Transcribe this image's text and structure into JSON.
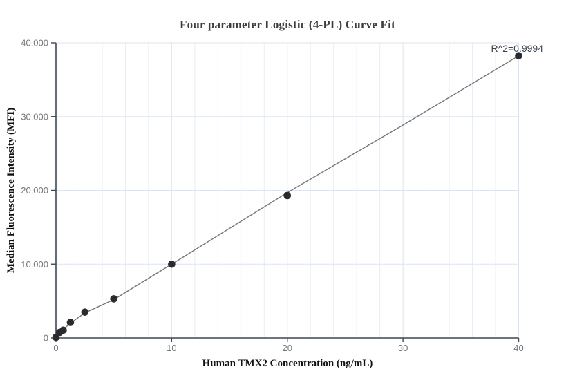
{
  "chart_data": {
    "type": "scatter",
    "title": "Four parameter Logistic (4-PL) Curve Fit",
    "xlabel": "Human TMX2 Concentration (ng/mL)",
    "ylabel": "Median Fluorescence Intensity (MFI)",
    "annotation": "R^2=0.9994",
    "xlim": [
      0,
      40
    ],
    "ylim": [
      0,
      40000
    ],
    "x_ticks": [
      0,
      10,
      20,
      30,
      40
    ],
    "x_tick_labels": [
      "0",
      "10",
      "20",
      "30",
      "40"
    ],
    "y_ticks": [
      0,
      10000,
      20000,
      30000,
      40000
    ],
    "y_tick_labels": [
      "0",
      "10,000",
      "20,000",
      "30,000",
      "40,000"
    ],
    "x_minor_grid_step": 2,
    "grid": "on",
    "legend": "none",
    "points": [
      {
        "x": 0,
        "y": 80
      },
      {
        "x": 0.3125,
        "y": 750
      },
      {
        "x": 0.625,
        "y": 1050
      },
      {
        "x": 1.25,
        "y": 2100
      },
      {
        "x": 2.5,
        "y": 3500
      },
      {
        "x": 5,
        "y": 5300
      },
      {
        "x": 10,
        "y": 10000
      },
      {
        "x": 20,
        "y": 19300
      },
      {
        "x": 40,
        "y": 38250
      }
    ],
    "fit_line": [
      {
        "x": 0,
        "y": 300
      },
      {
        "x": 1.25,
        "y": 2000
      },
      {
        "x": 2.5,
        "y": 3400
      },
      {
        "x": 5,
        "y": 5200
      },
      {
        "x": 10,
        "y": 10000
      },
      {
        "x": 20,
        "y": 19700
      },
      {
        "x": 30,
        "y": 28850
      },
      {
        "x": 40,
        "y": 38250
      }
    ],
    "colors": {
      "point": "#2b2b2f",
      "fit_line": "#757575",
      "axis": "#3f4752",
      "grid_minor": "#e9edf4",
      "grid_major": "#dde4ee",
      "tick_label": "#74787e",
      "title": "#3d3d3d",
      "axis_label": "#111111",
      "annotation": "#3c4450"
    }
  }
}
